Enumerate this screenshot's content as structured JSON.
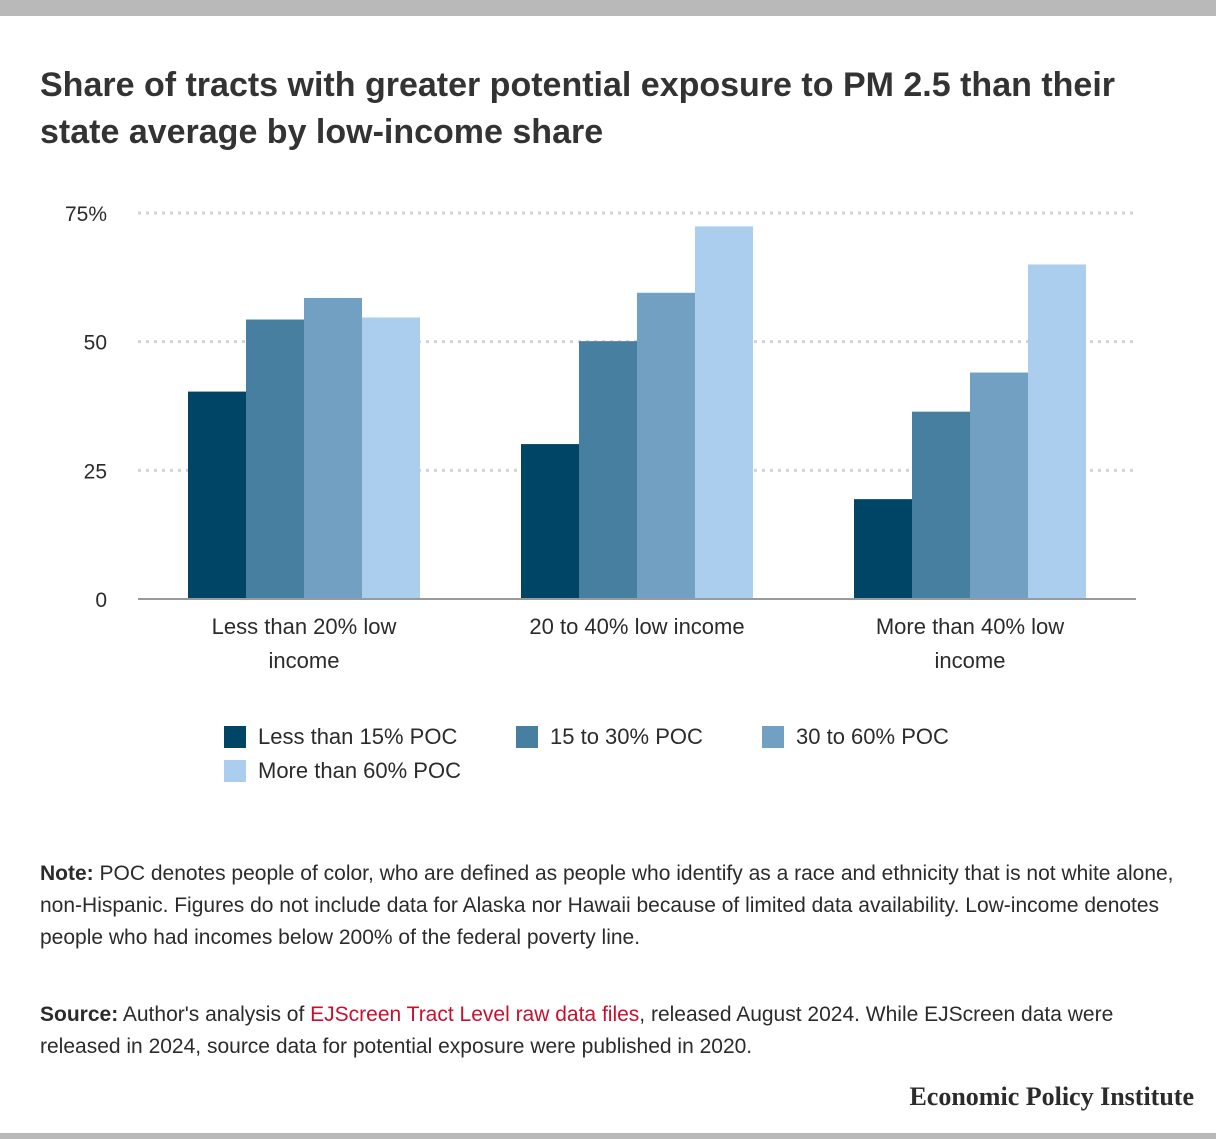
{
  "title": "Share of tracts with greater potential exposure to PM 2.5 than their state average by low-income share",
  "chart_data": {
    "type": "bar",
    "title": "Share of tracts with greater potential exposure to PM 2.5 than their state average by low-income share",
    "categories": [
      "Less than 20% low income",
      "20 to 40% low income",
      "More than 40% low income"
    ],
    "series": [
      {
        "name": "Less than 15% POC",
        "color": "#004466",
        "values": [
          40.3,
          30.1,
          19.4
        ]
      },
      {
        "name": "15 to 30% POC",
        "color": "#467fa0",
        "values": [
          54.3,
          50.1,
          36.4
        ]
      },
      {
        "name": "30 to 60% POC",
        "color": "#71a0c2",
        "values": [
          58.5,
          59.5,
          44.0
        ]
      },
      {
        "name": "More than 60% POC",
        "color": "#abcdee",
        "values": [
          54.7,
          72.4,
          65.0
        ]
      }
    ],
    "ylim": [
      0,
      75
    ],
    "yticks": [
      0,
      25,
      50,
      75
    ],
    "ytick_labels": [
      "0",
      "25",
      "50",
      "75%"
    ],
    "grid": true,
    "legend_position": "bottom",
    "xlabel": "",
    "ylabel": ""
  },
  "note": {
    "lead": "Note:",
    "text": " POC denotes people of color, who are defined as people who identify as a race and ethnicity that is not white alone, non-Hispanic. Figures do not include data for Alaska nor Hawaii because of limited data availability. Low-income denotes people who had incomes below 200% of the federal poverty line."
  },
  "source": {
    "lead": "Source:",
    "text_before": " Author's analysis of ",
    "link_text": "EJScreen Tract Level raw data files",
    "text_after": ", released August 2024. While EJScreen data were released in 2024, source data for potential exposure were published in 2020."
  },
  "brand": "Economic Policy Institute"
}
